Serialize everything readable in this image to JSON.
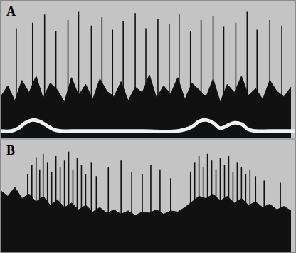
{
  "chart_data": [
    {
      "type": "bar",
      "title": "A",
      "xlim": [
        0,
        416
      ],
      "ylim": [
        0,
        100
      ],
      "tick_labels": false,
      "grid": false,
      "series": [
        {
          "type": "area",
          "color": "#111111",
          "x": [
            0,
            10,
            20,
            30,
            40,
            50,
            60,
            70,
            80,
            90,
            100,
            110,
            120,
            130,
            140,
            150,
            160,
            170,
            180,
            190,
            200,
            210,
            220,
            230,
            240,
            250,
            260,
            270,
            280,
            290,
            300,
            310,
            320,
            330,
            340,
            350,
            360,
            370,
            380,
            390,
            400,
            410
          ],
          "values": [
            30,
            38,
            27,
            42,
            33,
            45,
            29,
            40,
            35,
            26,
            44,
            31,
            39,
            28,
            43,
            34,
            30,
            41,
            27,
            37,
            33,
            46,
            29,
            38,
            32,
            44,
            28,
            40,
            35,
            30,
            43,
            26,
            39,
            33,
            45,
            31,
            36,
            28,
            42,
            34,
            30,
            37
          ]
        },
        {
          "type": "bar",
          "color": "#111111",
          "x": [
            22,
            45,
            62,
            78,
            95,
            110,
            128,
            143,
            158,
            173,
            190,
            205,
            222,
            238,
            252,
            268,
            283,
            300,
            315,
            332,
            348,
            362,
            380,
            397
          ],
          "values": [
            80,
            84,
            90,
            78,
            86,
            92,
            82,
            88,
            79,
            85,
            91,
            80,
            87,
            83,
            90,
            78,
            86,
            89,
            81,
            84,
            92,
            79,
            86,
            82
          ]
        },
        {
          "type": "line",
          "color": "#f2f2f2",
          "x": [
            0,
            15,
            25,
            35,
            45,
            55,
            65,
            75,
            85,
            100,
            150,
            200,
            250,
            270,
            280,
            290,
            300,
            310,
            320,
            330,
            340,
            350,
            360,
            380,
            416
          ],
          "values": [
            5,
            5,
            7,
            11,
            13,
            12,
            9,
            6,
            5,
            5,
            5,
            5,
            5,
            8,
            12,
            13,
            11,
            7,
            9,
            11,
            10,
            6,
            5,
            5,
            5
          ]
        }
      ]
    },
    {
      "type": "bar",
      "title": "B",
      "xlim": [
        0,
        416
      ],
      "ylim": [
        0,
        100
      ],
      "tick_labels": false,
      "grid": false,
      "series": [
        {
          "type": "area",
          "color": "#111111",
          "x": [
            0,
            10,
            20,
            30,
            40,
            50,
            60,
            70,
            80,
            90,
            100,
            110,
            120,
            130,
            140,
            150,
            160,
            170,
            180,
            190,
            200,
            210,
            220,
            230,
            240,
            250,
            260,
            270,
            280,
            290,
            300,
            310,
            320,
            330,
            340,
            350,
            360,
            370,
            380,
            390,
            400,
            410
          ],
          "values": [
            55,
            50,
            58,
            48,
            52,
            45,
            50,
            42,
            47,
            40,
            44,
            38,
            42,
            36,
            40,
            35,
            38,
            34,
            37,
            33,
            36,
            35,
            38,
            34,
            37,
            36,
            40,
            45,
            50,
            48,
            52,
            46,
            50,
            44,
            48,
            42,
            45,
            40,
            43,
            38,
            41,
            37
          ]
        },
        {
          "type": "bar",
          "color": "#111111",
          "x": [
            38,
            44,
            50,
            55,
            60,
            66,
            72,
            78,
            84,
            90,
            96,
            102,
            108,
            114,
            120,
            128,
            135,
            152,
            170,
            185,
            200,
            212,
            225,
            240,
            268,
            274,
            280,
            286,
            292,
            298,
            304,
            310,
            316,
            322,
            328,
            334,
            340,
            346,
            352,
            360,
            372,
            395
          ],
          "values": [
            70,
            78,
            85,
            74,
            88,
            80,
            72,
            86,
            76,
            82,
            90,
            74,
            84,
            78,
            70,
            80,
            68,
            76,
            82,
            72,
            70,
            78,
            74,
            66,
            72,
            80,
            86,
            76,
            88,
            82,
            74,
            84,
            78,
            86,
            72,
            80,
            76,
            70,
            74,
            68,
            64,
            62
          ]
        }
      ]
    }
  ]
}
